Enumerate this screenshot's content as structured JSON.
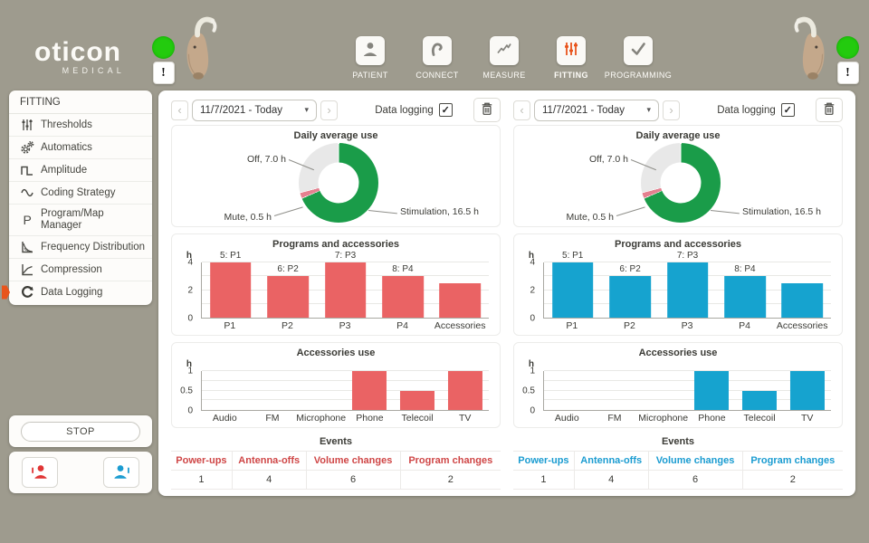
{
  "branding": {
    "logo_line1": "oticon",
    "logo_line2": "MEDICAL"
  },
  "glyphs": {
    "check": "✓",
    "caret": "▾",
    "prev": "‹",
    "next": "›"
  },
  "devices": {
    "left": {
      "status_color": "#23cb0e",
      "alert_label": "!"
    },
    "right": {
      "status_color": "#23cb0e",
      "alert_label": "!"
    }
  },
  "nav": {
    "active_color": "#e8541c",
    "items": [
      {
        "label": "PATIENT",
        "icon": "patient-icon",
        "active": false
      },
      {
        "label": "CONNECT",
        "icon": "connect-icon",
        "active": false
      },
      {
        "label": "MEASURE",
        "icon": "measure-icon",
        "active": false
      },
      {
        "label": "FITTING",
        "icon": "fitting-icon",
        "active": true
      },
      {
        "label": "PROGRAMMING",
        "icon": "programming-icon",
        "active": false
      }
    ]
  },
  "sidebar": {
    "title": "FITTING",
    "items": [
      {
        "label": "Thresholds",
        "icon": "sliders-icon",
        "active": false
      },
      {
        "label": "Automatics",
        "icon": "gears-icon",
        "active": false
      },
      {
        "label": "Amplitude",
        "icon": "square-wave-icon",
        "active": false
      },
      {
        "label": "Coding Strategy",
        "icon": "sine-wave-icon",
        "active": false
      },
      {
        "label": "Program/Map Manager",
        "icon": "program-map-icon",
        "active": false
      },
      {
        "label": "Frequency Distribution",
        "icon": "frequency-chart-icon",
        "active": false
      },
      {
        "label": "Compression",
        "icon": "compression-chart-icon",
        "active": false
      },
      {
        "label": "Data Logging",
        "icon": "data-logging-icon",
        "active": true
      }
    ],
    "stop_button_label": "STOP"
  },
  "panels": [
    {
      "id": "left",
      "date_range_value": "11/7/2021 - Today",
      "data_logging_label": "Data logging",
      "data_logging_checked": true,
      "accent_color": "#ea6364"
    },
    {
      "id": "right",
      "date_range_value": "11/7/2021 - Today",
      "data_logging_label": "Data logging",
      "data_logging_checked": true,
      "accent_color": "#16a3cf"
    }
  ],
  "chart_data": [
    {
      "panel": "left",
      "type": "pie",
      "donut": true,
      "title": "Daily average use",
      "unit": "h",
      "total": 24,
      "labels": [
        "Off, 7.0 h",
        "Mute, 0.5 h",
        "Stimulation, 16.5 h"
      ],
      "values": [
        7.0,
        0.5,
        16.5
      ],
      "colors": [
        "#e8e8e8",
        "#e4808f",
        "#1a9c49"
      ]
    },
    {
      "panel": "left",
      "type": "bar",
      "title": "Programs and accessories",
      "ylabel": "h",
      "ylim": [
        0,
        4
      ],
      "yticks": [
        0,
        2,
        4
      ],
      "gridlines": [
        1,
        2,
        3,
        4
      ],
      "categories": [
        "P1",
        "P2",
        "P3",
        "P4",
        "Accessories"
      ],
      "values": [
        4,
        3,
        4,
        3,
        2.5
      ],
      "bar_labels": [
        "5: P1",
        "6: P2",
        "7: P3",
        "8: P4",
        ""
      ],
      "color": "#ea6364"
    },
    {
      "panel": "left",
      "type": "bar",
      "title": "Accessories use",
      "ylabel": "h",
      "ylim": [
        0,
        1
      ],
      "yticks": [
        0,
        0.5,
        1
      ],
      "gridlines": [
        0.25,
        0.5,
        0.75,
        1
      ],
      "categories": [
        "Audio",
        "FM",
        "Microphone",
        "Phone",
        "Telecoil",
        "TV"
      ],
      "values": [
        0,
        0,
        0,
        1,
        0.5,
        1
      ],
      "bar_labels": [
        "",
        "",
        "",
        "",
        "",
        ""
      ],
      "color": "#ea6364"
    },
    {
      "panel": "left",
      "type": "table",
      "title": "Events",
      "header_color": "#cf4646",
      "columns": [
        "Power-ups",
        "Antenna-offs",
        "Volume changes",
        "Program changes"
      ],
      "values": [
        1,
        4,
        6,
        2
      ]
    },
    {
      "panel": "right",
      "type": "pie",
      "donut": true,
      "title": "Daily average use",
      "unit": "h",
      "total": 24,
      "labels": [
        "Off, 7.0 h",
        "Mute, 0.5 h",
        "Stimulation, 16.5 h"
      ],
      "values": [
        7.0,
        0.5,
        16.5
      ],
      "colors": [
        "#e8e8e8",
        "#e4808f",
        "#1a9c49"
      ]
    },
    {
      "panel": "right",
      "type": "bar",
      "title": "Programs and accessories",
      "ylabel": "h",
      "ylim": [
        0,
        4
      ],
      "yticks": [
        0,
        2,
        4
      ],
      "gridlines": [
        1,
        2,
        3,
        4
      ],
      "categories": [
        "P1",
        "P2",
        "P3",
        "P4",
        "Accessories"
      ],
      "values": [
        4,
        3,
        4,
        3,
        2.5
      ],
      "bar_labels": [
        "5: P1",
        "6: P2",
        "7: P3",
        "8: P4",
        ""
      ],
      "color": "#16a3cf"
    },
    {
      "panel": "right",
      "type": "bar",
      "title": "Accessories use",
      "ylabel": "h",
      "ylim": [
        0,
        1
      ],
      "yticks": [
        0,
        0.5,
        1
      ],
      "gridlines": [
        0.25,
        0.5,
        0.75,
        1
      ],
      "categories": [
        "Audio",
        "FM",
        "Microphone",
        "Phone",
        "Telecoil",
        "TV"
      ],
      "values": [
        0,
        0,
        0,
        1,
        0.5,
        1
      ],
      "bar_labels": [
        "",
        "",
        "",
        "",
        "",
        ""
      ],
      "color": "#16a3cf"
    },
    {
      "panel": "right",
      "type": "table",
      "title": "Events",
      "header_color": "#1b9cd1",
      "columns": [
        "Power-ups",
        "Antenna-offs",
        "Volume changes",
        "Program changes"
      ],
      "values": [
        1,
        4,
        6,
        2
      ]
    }
  ]
}
